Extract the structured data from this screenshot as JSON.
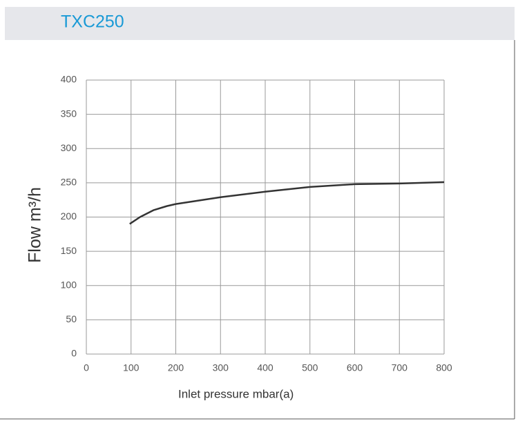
{
  "header": {
    "title": "TXC250"
  },
  "chart_data": {
    "type": "line",
    "x_label": "Inlet pressure mbar(a)",
    "y_label": "Flow m³/h",
    "xlim": [
      0,
      800
    ],
    "xticks": [
      0,
      100,
      200,
      300,
      400,
      500,
      600,
      700,
      800
    ],
    "ylim": [
      0,
      400
    ],
    "yticks": [
      0,
      50,
      100,
      150,
      200,
      250,
      300,
      350,
      400
    ],
    "grid": true,
    "x": [
      97,
      120,
      150,
      180,
      200,
      300,
      400,
      500,
      600,
      700,
      800
    ],
    "series": [
      {
        "color": "#333333",
        "values": [
          190,
          200,
          210,
          216,
          219,
          229,
          237,
          244,
          248,
          249,
          251
        ]
      }
    ]
  }
}
